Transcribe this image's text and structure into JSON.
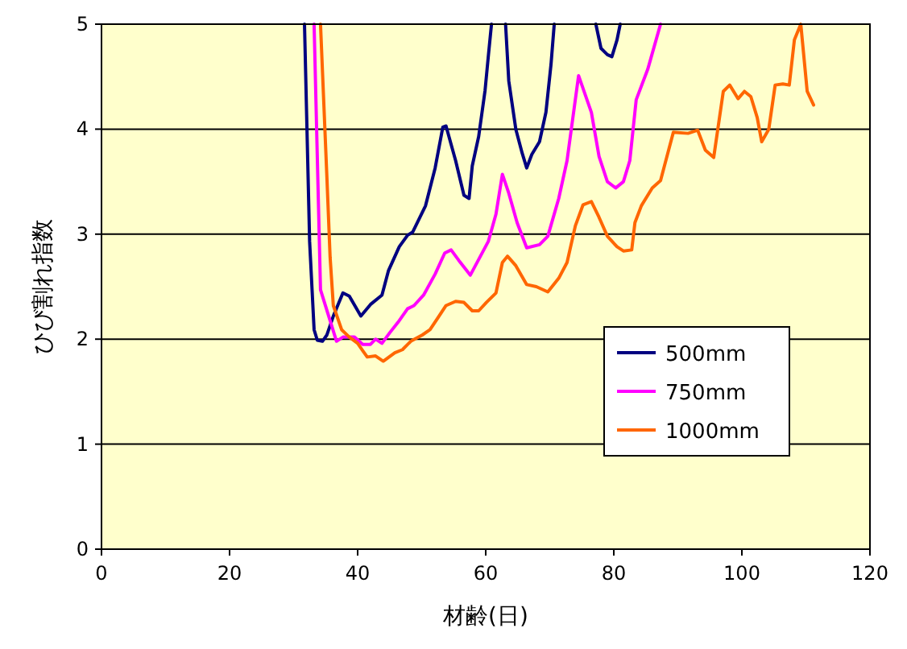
{
  "chart_data": {
    "type": "line",
    "xlabel": "材齢(日)",
    "ylabel": "ひび割れ指数",
    "xlim": [
      0,
      120
    ],
    "xticks": [
      0,
      20,
      40,
      60,
      80,
      100,
      120
    ],
    "ylim": [
      0,
      5
    ],
    "yticks": [
      0,
      1,
      2,
      3,
      4,
      5
    ],
    "grid": "y",
    "legend": "right",
    "marker": "none",
    "line_style": "solid",
    "series": [
      {
        "name": "500mm",
        "color": "#000080",
        "x": [
          31.7,
          32.5,
          33.2,
          33.7,
          34.5,
          35.2,
          36.2,
          37.7,
          38.7,
          40.5,
          42.0,
          43.8,
          44.8,
          46.5,
          47.8,
          48.6,
          50.6,
          52.1,
          53.3,
          53.8,
          55.3,
          56.6,
          57.4,
          57.9,
          58.9,
          59.9,
          60.4,
          60.9,
          63.1,
          63.6,
          64.7,
          65.7,
          66.4,
          67.2,
          68.4,
          69.4,
          70.2,
          70.7,
          77.2,
          78.0,
          79.0,
          79.7,
          80.5,
          81.0
        ],
        "values": [
          5,
          2.93,
          2.09,
          1.99,
          1.98,
          2.04,
          2.22,
          2.44,
          2.41,
          2.22,
          2.33,
          2.42,
          2.65,
          2.88,
          2.99,
          3.02,
          3.27,
          3.63,
          4.02,
          4.03,
          3.7,
          3.37,
          3.34,
          3.65,
          3.93,
          4.37,
          4.69,
          5,
          5,
          4.46,
          4.0,
          3.77,
          3.63,
          3.76,
          3.88,
          4.16,
          4.62,
          5,
          5,
          4.77,
          4.71,
          4.69,
          4.85,
          5
        ]
      },
      {
        "name": "750mm",
        "color": "#ff00ff",
        "x": [
          33.2,
          34.2,
          36.7,
          37.7,
          39.5,
          40.8,
          42.0,
          42.8,
          43.8,
          45.0,
          46.3,
          47.8,
          48.8,
          50.3,
          52.1,
          53.6,
          54.6,
          55.8,
          57.6,
          60.4,
          61.6,
          62.6,
          63.6,
          64.9,
          66.4,
          68.4,
          69.7,
          71.4,
          72.7,
          74.5,
          76.5,
          77.7,
          79.0,
          80.3,
          81.5,
          82.5,
          83.5,
          85.3,
          87.3
        ],
        "values": [
          5,
          2.47,
          1.98,
          2.02,
          2.02,
          1.95,
          1.95,
          2.0,
          1.96,
          2.06,
          2.16,
          2.29,
          2.32,
          2.42,
          2.62,
          2.82,
          2.85,
          2.75,
          2.61,
          2.93,
          3.19,
          3.57,
          3.39,
          3.11,
          2.87,
          2.9,
          2.98,
          3.34,
          3.7,
          4.51,
          4.16,
          3.74,
          3.5,
          3.44,
          3.5,
          3.7,
          4.28,
          4.57,
          5
        ]
      },
      {
        "name": "1000mm",
        "color": "#ff6600",
        "x": [
          34.2,
          35.2,
          35.7,
          36.2,
          37.5,
          38.7,
          40.0,
          40.8,
          41.5,
          42.8,
          44.0,
          45.8,
          47.0,
          48.3,
          50.1,
          51.3,
          52.6,
          53.8,
          55.3,
          56.6,
          57.9,
          58.9,
          60.1,
          61.6,
          62.6,
          63.4,
          64.7,
          66.4,
          67.9,
          69.7,
          71.4,
          72.7,
          74.0,
          75.2,
          76.5,
          77.7,
          79.0,
          80.5,
          81.5,
          82.8,
          83.3,
          84.3,
          86.0,
          87.3,
          89.3,
          91.6,
          93.1,
          94.3,
          95.6,
          97.1,
          98.1,
          99.4,
          100.4,
          101.4,
          102.4,
          103.1,
          104.2,
          105.2,
          106.4,
          107.4,
          108.2,
          109.2,
          110.2,
          111.2
        ],
        "values": [
          5,
          3.54,
          2.78,
          2.32,
          2.09,
          2.02,
          1.96,
          1.89,
          1.83,
          1.84,
          1.79,
          1.87,
          1.9,
          1.98,
          2.04,
          2.09,
          2.21,
          2.32,
          2.36,
          2.35,
          2.27,
          2.27,
          2.35,
          2.44,
          2.73,
          2.79,
          2.7,
          2.52,
          2.5,
          2.45,
          2.58,
          2.73,
          3.08,
          3.28,
          3.31,
          3.16,
          2.98,
          2.88,
          2.84,
          2.85,
          3.11,
          3.27,
          3.44,
          3.51,
          3.97,
          3.96,
          3.99,
          3.8,
          3.73,
          4.36,
          4.42,
          4.29,
          4.36,
          4.31,
          4.11,
          3.88,
          4.0,
          4.42,
          4.43,
          4.42,
          4.85,
          5,
          4.36,
          4.23
        ]
      }
    ]
  }
}
